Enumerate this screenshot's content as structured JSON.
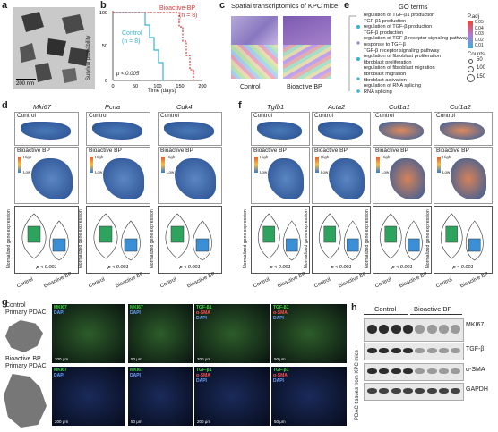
{
  "panels": {
    "a": {
      "letter": "a",
      "scale_bar": "200 nm"
    },
    "b": {
      "letter": "b",
      "ylabel": "Survival probability",
      "xlabel": "Time (days)",
      "pvalue": "p < 0.005",
      "series": [
        {
          "name": "Bioactive-BP",
          "n": "(n = 8)",
          "color": "#d93a3a"
        },
        {
          "name": "Control",
          "n": "(n = 8)",
          "color": "#3bb0d6"
        }
      ],
      "xticks": [
        "0",
        "50",
        "100",
        "150",
        "200"
      ],
      "yticks": [
        "0",
        "50",
        "100"
      ]
    },
    "c": {
      "letter": "c",
      "title": "Spatial transcriptomics of KPC mice",
      "labels": [
        "Control",
        "Bioactive BP"
      ]
    },
    "e": {
      "letter": "e",
      "title": "GO terms",
      "terms": [
        "regulation of TGF-β1 production",
        "TGF-β1 production",
        "regulation of TGF-β production",
        "TGF-β production",
        "regulation of TGF-β receptor signaling pathway",
        "response to TGF-β",
        "TGF-β receptor signaling pathway",
        "regulation of fibroblast proliferation",
        "fibroblast proliferation",
        "regulation of fibroblast migration",
        "fibroblast migration",
        "fibroblast activation",
        "regulation of RNA splicing",
        "RNA splicing"
      ],
      "legend_title": "P.adj",
      "legend_values": [
        "0.05",
        "0.04",
        "0.03",
        "0.02",
        "0.01"
      ],
      "counts_title": "Counts",
      "counts_values": [
        "50",
        "100",
        "150"
      ]
    },
    "d": {
      "letter": "d",
      "genes": [
        "Mki67",
        "Pcna",
        "Cdk4"
      ]
    },
    "f": {
      "letter": "f",
      "genes": [
        "Tgfb1",
        "Acta2",
        "Col1a1",
        "Col1a2"
      ]
    },
    "common": {
      "control": "Control",
      "bioactive": "Bioactive BP",
      "high": "High",
      "low": "Low",
      "ylabel": "Normalized gene expression",
      "pvalue": "p < 0.001",
      "xcats": [
        "Control",
        "Bioactive BP"
      ]
    },
    "g": {
      "letter": "g",
      "left_top": [
        "Control",
        "Primary PDAC"
      ],
      "left_bottom": [
        "Bioactive BP",
        "Primary PDAC"
      ],
      "top_labels": [
        [
          "MKI67",
          "DAPI"
        ],
        [
          "MKI67",
          "DAPI"
        ],
        [
          "TGF-β1",
          "α-SMA",
          "DAPI"
        ],
        [
          "TGF-β1",
          "α-SMA",
          "DAPI"
        ]
      ],
      "bottom_labels": [
        [
          "MKI67",
          "DAPI"
        ],
        [
          "MKI67",
          "DAPI"
        ],
        [
          "TGF-β1",
          "α-SMA",
          "DAPI"
        ],
        [
          "TGF-β1",
          "α-SMA",
          "DAPI"
        ]
      ],
      "scales": [
        "200 μm",
        "50 μm",
        "200 μm",
        "50 μm"
      ]
    },
    "h": {
      "letter": "h",
      "groups": [
        "Control",
        "Bioactive BP"
      ],
      "proteins": [
        "MKI67",
        "TGF-β",
        "α-SMA",
        "GAPDH"
      ],
      "side_label": "PDAC tissues from KPC mice"
    }
  }
}
